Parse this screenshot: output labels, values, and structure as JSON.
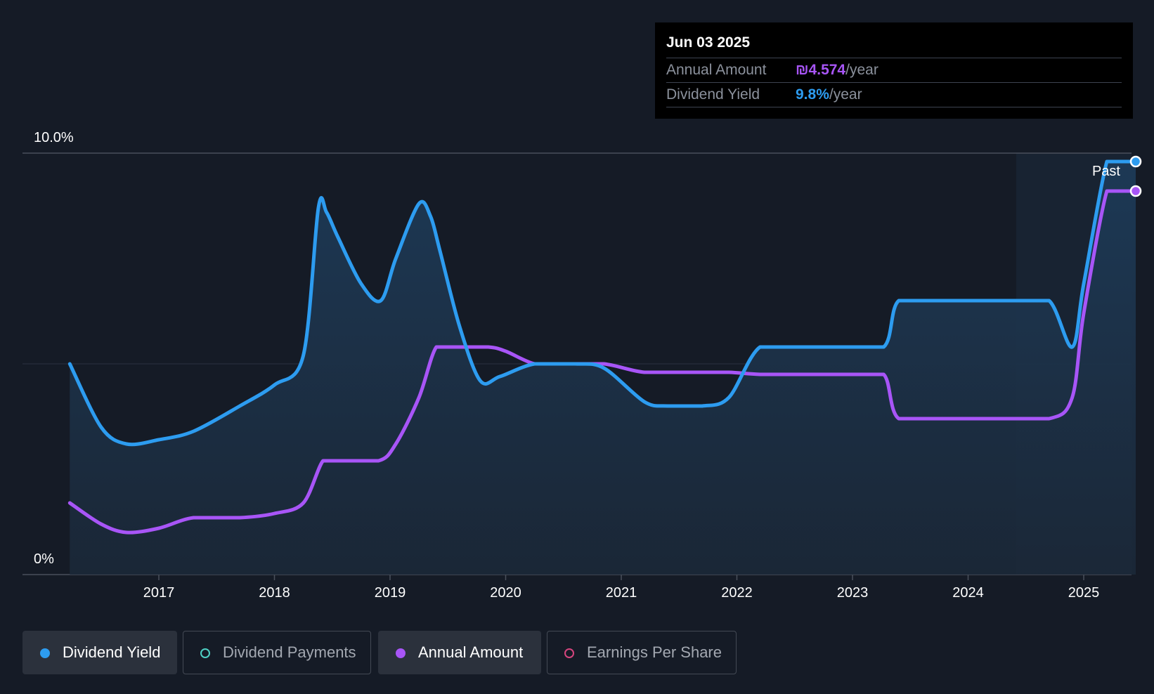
{
  "tooltip": {
    "date": "Jun 03 2025",
    "rows": [
      {
        "label": "Annual Amount",
        "value": "₪4.574",
        "unit": "/year"
      },
      {
        "label": "Dividend Yield",
        "value": "9.8%",
        "unit": "/year"
      }
    ]
  },
  "past_label": "Past",
  "legend": [
    {
      "label": "Dividend Yield",
      "color": "#2d9cf0",
      "active": true
    },
    {
      "label": "Dividend Payments",
      "color": "#4fd1c5",
      "active": false
    },
    {
      "label": "Annual Amount",
      "color": "#a855f7",
      "active": true
    },
    {
      "label": "Earnings Per Share",
      "color": "#d6457e",
      "active": false
    }
  ],
  "colors": {
    "background": "#151b26",
    "yield": "#2d9cf0",
    "amount": "#a855f7",
    "area_fill": "#1b3550"
  },
  "chart_data": {
    "type": "line",
    "title": "",
    "xlabel": "",
    "ylabel": "",
    "ylim": [
      0,
      10
    ],
    "y_ticks": [
      {
        "value": 10,
        "label": "10.0%"
      },
      {
        "value": 0,
        "label": "0%"
      }
    ],
    "x_ticks": [
      2017,
      2018,
      2019,
      2020,
      2021,
      2022,
      2023,
      2024,
      2025
    ],
    "xlim": [
      2015.6,
      2025.45
    ],
    "past_region_start": 2024.44,
    "series": [
      {
        "name": "Dividend Yield",
        "color": "#2d9cf0",
        "x": [
          2016.23,
          2016.5,
          2016.72,
          2017.0,
          2017.3,
          2017.7,
          2018.0,
          2018.25,
          2018.38,
          2018.45,
          2018.55,
          2018.75,
          2018.92,
          2019.05,
          2019.25,
          2019.35,
          2019.43,
          2019.6,
          2019.78,
          2019.95,
          2020.25,
          2020.6,
          2020.85,
          2021.2,
          2021.4,
          2021.7,
          2021.93,
          2022.2,
          2022.55,
          2022.9,
          2023.27,
          2023.4,
          2023.75,
          2024.1,
          2024.4,
          2024.7,
          2024.9,
          2025.0,
          2025.2,
          2025.3,
          2025.45
        ],
        "y": [
          5.0,
          3.5,
          3.1,
          3.2,
          3.4,
          4.0,
          4.5,
          5.2,
          8.7,
          8.6,
          8.0,
          6.9,
          6.5,
          7.5,
          8.8,
          8.5,
          7.7,
          5.9,
          4.6,
          4.7,
          5.0,
          5.0,
          4.9,
          4.1,
          4.0,
          4.0,
          4.2,
          5.4,
          5.4,
          5.4,
          5.4,
          6.5,
          6.5,
          6.5,
          6.5,
          6.5,
          5.4,
          6.9,
          9.8,
          9.8,
          9.8
        ]
      },
      {
        "name": "Annual Amount",
        "color": "#a855f7",
        "x": [
          2016.23,
          2016.5,
          2016.72,
          2017.0,
          2017.3,
          2017.7,
          2018.0,
          2018.25,
          2018.42,
          2018.55,
          2018.9,
          2019.05,
          2019.25,
          2019.4,
          2019.55,
          2019.85,
          2020.0,
          2020.25,
          2020.5,
          2020.85,
          2021.2,
          2021.6,
          2021.93,
          2022.2,
          2022.6,
          2023.0,
          2023.27,
          2023.4,
          2023.8,
          2024.2,
          2024.7,
          2024.9,
          2025.0,
          2025.2,
          2025.3,
          2025.45
        ],
        "y": [
          1.7,
          1.2,
          1.0,
          1.1,
          1.35,
          1.35,
          1.45,
          1.7,
          2.7,
          2.7,
          2.7,
          3.1,
          4.2,
          5.4,
          5.4,
          5.4,
          5.3,
          5.0,
          5.0,
          5.0,
          4.8,
          4.8,
          4.8,
          4.75,
          4.75,
          4.75,
          4.75,
          3.7,
          3.7,
          3.7,
          3.7,
          4.2,
          6.2,
          9.1,
          9.1,
          9.1
        ]
      }
    ]
  }
}
